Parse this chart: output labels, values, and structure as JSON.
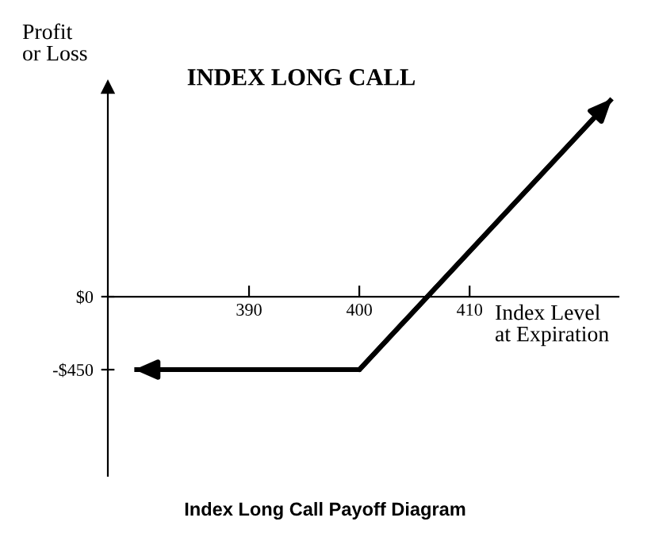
{
  "chart_data": {
    "type": "line",
    "title": "INDEX LONG CALL",
    "xlabel": "Index Level\nat Expiration",
    "ylabel": "Profit\nor Loss",
    "annotations": [
      "Index Long Call Payoff Diagram"
    ],
    "x": [
      379.6,
      400,
      422.9
    ],
    "series": [
      {
        "color": "#000000",
        "values": [
          -450,
          -450,
          1220
        ]
      }
    ],
    "xlim": [
      377.2,
      423.5
    ],
    "ylim": [
      -1105,
      1291
    ],
    "xticks": [
      390,
      400,
      410
    ],
    "yticks": [
      {
        "value": 0,
        "label": "$0"
      },
      {
        "value": -450,
        "label": "-$450"
      }
    ],
    "grid": false,
    "legend": false,
    "marker": "none",
    "line_style": "solid"
  }
}
